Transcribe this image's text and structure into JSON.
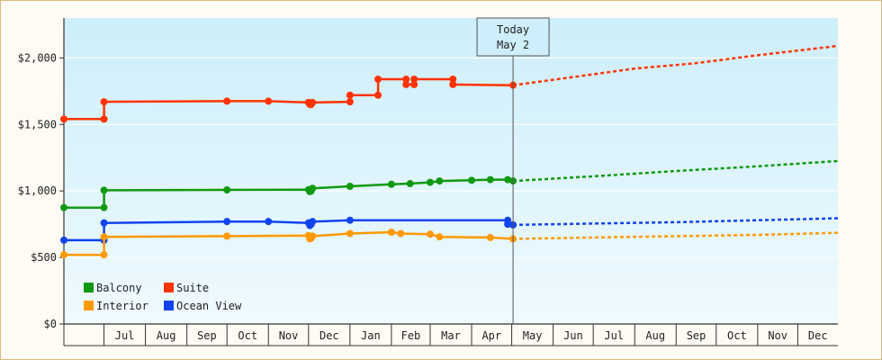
{
  "chart_data": {
    "type": "line",
    "x_range": [
      "2023-06-01",
      "2024-12-31"
    ],
    "ylim": [
      0,
      2300
    ],
    "y_ticks": [
      {
        "value": 0,
        "label": "$0"
      },
      {
        "value": 500,
        "label": "$500"
      },
      {
        "value": 1000,
        "label": "$1,000"
      },
      {
        "value": 1500,
        "label": "$1,500"
      },
      {
        "value": 2000,
        "label": "$2,000"
      }
    ],
    "x_months": [
      {
        "start": "2023-07-01",
        "label": "Jul"
      },
      {
        "start": "2023-08-01",
        "label": "Aug"
      },
      {
        "start": "2023-09-01",
        "label": "Sep"
      },
      {
        "start": "2023-10-01",
        "label": "Oct"
      },
      {
        "start": "2023-11-01",
        "label": "Nov"
      },
      {
        "start": "2023-12-01",
        "label": "Dec"
      },
      {
        "start": "2024-01-01",
        "label": "Jan"
      },
      {
        "start": "2024-02-01",
        "label": "Feb"
      },
      {
        "start": "2024-03-01",
        "label": "Mar"
      },
      {
        "start": "2024-04-01",
        "label": "Apr"
      },
      {
        "start": "2024-05-01",
        "label": "May"
      },
      {
        "start": "2024-06-01",
        "label": "Jun"
      },
      {
        "start": "2024-07-01",
        "label": "Jul"
      },
      {
        "start": "2024-08-01",
        "label": "Aug"
      },
      {
        "start": "2024-09-01",
        "label": "Sep"
      },
      {
        "start": "2024-10-01",
        "label": "Oct"
      },
      {
        "start": "2024-11-01",
        "label": "Nov"
      },
      {
        "start": "2024-12-01",
        "label": "Dec"
      }
    ],
    "today": {
      "date": "2024-05-02",
      "label_line1": "Today",
      "label_line2": "May 2"
    },
    "legend": {
      "position": "bottom-left"
    },
    "series": [
      {
        "name": "Suite",
        "color": "#ff3300",
        "points": [
          [
            "2023-06-01",
            1540
          ],
          [
            "2023-07-01",
            1540
          ],
          [
            "2023-07-01",
            1670
          ],
          [
            "2023-10-01",
            1675
          ],
          [
            "2023-11-01",
            1675
          ],
          [
            "2023-12-01",
            1665
          ],
          [
            "2023-12-02",
            1650
          ],
          [
            "2023-12-03",
            1650
          ],
          [
            "2023-12-04",
            1665
          ],
          [
            "2024-01-01",
            1670
          ],
          [
            "2024-01-01",
            1720
          ],
          [
            "2024-01-22",
            1720
          ],
          [
            "2024-01-22",
            1840
          ],
          [
            "2024-02-12",
            1840
          ],
          [
            "2024-02-12",
            1800
          ],
          [
            "2024-02-18",
            1800
          ],
          [
            "2024-02-18",
            1840
          ],
          [
            "2024-03-18",
            1840
          ],
          [
            "2024-03-18",
            1800
          ],
          [
            "2024-05-02",
            1795
          ]
        ],
        "forecast": [
          [
            "2024-05-02",
            1795
          ],
          [
            "2024-06-15",
            1855
          ],
          [
            "2024-08-01",
            1920
          ],
          [
            "2024-09-15",
            1960
          ],
          [
            "2024-11-01",
            2020
          ],
          [
            "2024-12-31",
            2090
          ]
        ]
      },
      {
        "name": "Balcony",
        "color": "#119911",
        "points": [
          [
            "2023-06-01",
            875
          ],
          [
            "2023-07-01",
            875
          ],
          [
            "2023-07-01",
            1005
          ],
          [
            "2023-10-01",
            1008
          ],
          [
            "2023-12-01",
            1010
          ],
          [
            "2023-12-02",
            995
          ],
          [
            "2023-12-03",
            1000
          ],
          [
            "2023-12-04",
            1020
          ],
          [
            "2024-01-01",
            1035
          ],
          [
            "2024-02-01",
            1050
          ],
          [
            "2024-02-15",
            1055
          ],
          [
            "2024-03-01",
            1065
          ],
          [
            "2024-03-08",
            1075
          ],
          [
            "2024-04-01",
            1080
          ],
          [
            "2024-04-15",
            1085
          ],
          [
            "2024-04-28",
            1085
          ],
          [
            "2024-05-02",
            1075
          ]
        ],
        "forecast": [
          [
            "2024-05-02",
            1075
          ],
          [
            "2024-07-01",
            1110
          ],
          [
            "2024-09-01",
            1150
          ],
          [
            "2024-11-01",
            1185
          ],
          [
            "2024-12-31",
            1225
          ]
        ]
      },
      {
        "name": "Ocean View",
        "color": "#1144ee",
        "points": [
          [
            "2023-06-01",
            630
          ],
          [
            "2023-07-01",
            630
          ],
          [
            "2023-07-01",
            760
          ],
          [
            "2023-10-01",
            770
          ],
          [
            "2023-11-01",
            770
          ],
          [
            "2023-12-01",
            760
          ],
          [
            "2023-12-02",
            740
          ],
          [
            "2023-12-03",
            750
          ],
          [
            "2023-12-04",
            770
          ],
          [
            "2024-01-01",
            780
          ],
          [
            "2024-04-28",
            780
          ],
          [
            "2024-04-28",
            750
          ],
          [
            "2024-05-02",
            745
          ]
        ],
        "forecast": [
          [
            "2024-05-02",
            745
          ],
          [
            "2024-07-01",
            755
          ],
          [
            "2024-09-01",
            765
          ],
          [
            "2024-11-01",
            780
          ],
          [
            "2024-12-31",
            795
          ]
        ]
      },
      {
        "name": "Interior",
        "color": "#ff9900",
        "points": [
          [
            "2023-06-01",
            520
          ],
          [
            "2023-07-01",
            520
          ],
          [
            "2023-07-01",
            655
          ],
          [
            "2023-10-01",
            660
          ],
          [
            "2023-12-01",
            665
          ],
          [
            "2023-12-02",
            640
          ],
          [
            "2023-12-03",
            645
          ],
          [
            "2023-12-04",
            660
          ],
          [
            "2024-01-01",
            680
          ],
          [
            "2024-02-01",
            690
          ],
          [
            "2024-02-08",
            680
          ],
          [
            "2024-03-01",
            675
          ],
          [
            "2024-03-08",
            655
          ],
          [
            "2024-04-15",
            650
          ],
          [
            "2024-05-02",
            640
          ]
        ],
        "forecast": [
          [
            "2024-05-02",
            640
          ],
          [
            "2024-07-01",
            650
          ],
          [
            "2024-09-01",
            660
          ],
          [
            "2024-11-01",
            670
          ],
          [
            "2024-12-31",
            685
          ]
        ]
      }
    ]
  }
}
